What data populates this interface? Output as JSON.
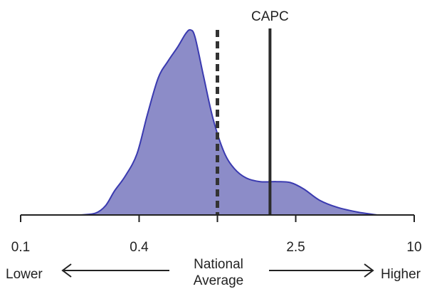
{
  "chart_data": {
    "type": "area",
    "title": "",
    "xlabel": "",
    "ylabel": "",
    "x_scale": "log10",
    "xlim": [
      0.1,
      10
    ],
    "ylim": [
      0,
      1
    ],
    "ticks": [
      {
        "value": 0.1,
        "label": "0.1"
      },
      {
        "value": 0.4,
        "label": "0.4"
      },
      {
        "value": 1,
        "label": ""
      },
      {
        "value": 2.5,
        "label": "2.5"
      },
      {
        "value": 10,
        "label": "10"
      }
    ],
    "series": [
      {
        "name": "",
        "color": "#8c8cc8",
        "line_color": "#3a3ab0",
        "points": [
          [
            0.2,
            0.0
          ],
          [
            0.24,
            0.01
          ],
          [
            0.27,
            0.05
          ],
          [
            0.3,
            0.13
          ],
          [
            0.34,
            0.21
          ],
          [
            0.39,
            0.33
          ],
          [
            0.44,
            0.54
          ],
          [
            0.5,
            0.74
          ],
          [
            0.56,
            0.83
          ],
          [
            0.63,
            0.91
          ],
          [
            0.69,
            0.98
          ],
          [
            0.73,
            1.0
          ],
          [
            0.77,
            0.96
          ],
          [
            0.85,
            0.75
          ],
          [
            0.95,
            0.52
          ],
          [
            1.08,
            0.34
          ],
          [
            1.22,
            0.25
          ],
          [
            1.4,
            0.2
          ],
          [
            1.65,
            0.18
          ],
          [
            2.0,
            0.18
          ],
          [
            2.35,
            0.175
          ],
          [
            2.75,
            0.14
          ],
          [
            3.3,
            0.08
          ],
          [
            4.1,
            0.04
          ],
          [
            5.2,
            0.015
          ],
          [
            6.5,
            0.0
          ]
        ]
      }
    ],
    "reference_lines": [
      {
        "x": 1,
        "style": "dashed",
        "color": "#333333",
        "label": ""
      },
      {
        "x": 1.85,
        "style": "solid",
        "color": "#2b2b2b",
        "label": "CAPC"
      }
    ],
    "annotations": {
      "left": "Lower",
      "right": "Higher",
      "center_line1": "National",
      "center_line2": "Average"
    },
    "grid": false,
    "legend": "none"
  }
}
